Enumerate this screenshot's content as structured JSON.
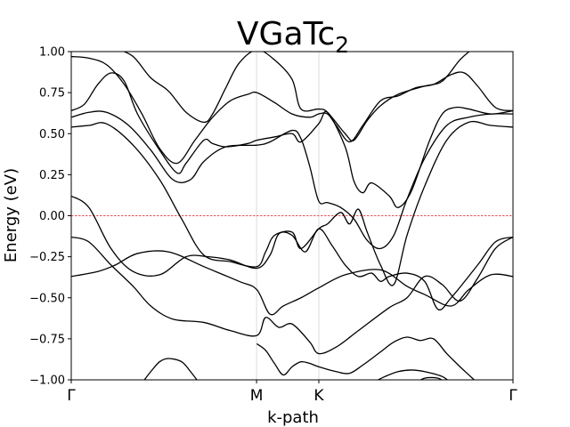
{
  "chart_data": {
    "type": "line",
    "title_main": "VGaTc",
    "title_sub": "2",
    "xlabel": "k-path",
    "ylabel": "Energy (eV)",
    "ylim": [
      -1.0,
      1.0
    ],
    "xlim": [
      0,
      1.0
    ],
    "yticks": [
      -1.0,
      -0.75,
      -0.5,
      -0.25,
      0.0,
      0.25,
      0.5,
      0.75,
      1.0
    ],
    "ytick_labels": [
      "−1.00",
      "−0.75",
      "−0.50",
      "−0.25",
      "0.00",
      "0.25",
      "0.50",
      "0.75",
      "1.00"
    ],
    "kpoints": [
      {
        "label": "Γ",
        "x": 0.0
      },
      {
        "label": "M",
        "x": 0.4195
      },
      {
        "label": "K",
        "x": 0.5605
      },
      {
        "label": "Γ",
        "x": 1.0
      }
    ],
    "fermi_level": 0.0,
    "colors": {
      "bands": "#000000",
      "fermi": "#e41a1c",
      "kline": "#d3d3d3"
    },
    "series": [
      {
        "points": [
          [
            0.0,
            -0.37
          ],
          [
            0.06,
            -0.34
          ],
          [
            0.1,
            -0.3
          ],
          [
            0.15,
            -0.23
          ],
          [
            0.22,
            -0.22
          ],
          [
            0.3,
            -0.31
          ],
          [
            0.38,
            -0.4
          ],
          [
            0.42,
            -0.45
          ],
          [
            0.45,
            -0.6
          ],
          [
            0.48,
            -0.55
          ],
          [
            0.52,
            -0.5
          ],
          [
            0.56,
            -0.44
          ],
          [
            0.62,
            -0.36
          ],
          [
            0.7,
            -0.33
          ],
          [
            0.76,
            -0.43
          ],
          [
            0.8,
            -0.48
          ],
          [
            0.86,
            -0.55
          ],
          [
            0.9,
            -0.45
          ],
          [
            0.95,
            -0.36
          ],
          [
            1.0,
            -0.37
          ]
        ]
      },
      {
        "points": [
          [
            0.0,
            -0.13
          ],
          [
            0.04,
            -0.16
          ],
          [
            0.09,
            -0.3
          ],
          [
            0.14,
            -0.43
          ],
          [
            0.18,
            -0.55
          ],
          [
            0.23,
            -0.63
          ],
          [
            0.3,
            -0.65
          ],
          [
            0.36,
            -0.7
          ],
          [
            0.42,
            -0.73
          ],
          [
            0.44,
            -0.62
          ],
          [
            0.47,
            -0.68
          ],
          [
            0.5,
            -0.66
          ],
          [
            0.54,
            -0.77
          ],
          [
            0.56,
            -0.84
          ],
          [
            0.6,
            -0.8
          ],
          [
            0.65,
            -0.7
          ],
          [
            0.72,
            -0.56
          ],
          [
            0.76,
            -0.5
          ],
          [
            0.8,
            -0.37
          ],
          [
            0.84,
            -0.42
          ],
          [
            0.88,
            -0.52
          ],
          [
            0.92,
            -0.38
          ],
          [
            0.96,
            -0.2
          ],
          [
            1.0,
            -0.13
          ]
        ]
      },
      {
        "points": [
          [
            0.0,
            0.12
          ],
          [
            0.04,
            0.05
          ],
          [
            0.09,
            -0.2
          ],
          [
            0.14,
            -0.34
          ],
          [
            0.2,
            -0.36
          ],
          [
            0.26,
            -0.25
          ],
          [
            0.31,
            -0.25
          ],
          [
            0.36,
            -0.27
          ],
          [
            0.42,
            -0.32
          ],
          [
            0.45,
            -0.24
          ],
          [
            0.47,
            -0.11
          ],
          [
            0.5,
            -0.12
          ],
          [
            0.53,
            -0.22
          ],
          [
            0.56,
            -0.08
          ],
          [
            0.59,
            -0.18
          ],
          [
            0.62,
            -0.3
          ],
          [
            0.65,
            -0.37
          ],
          [
            0.68,
            -0.35
          ],
          [
            0.7,
            -0.4
          ],
          [
            0.72,
            -0.37
          ],
          [
            0.76,
            -0.35
          ],
          [
            0.8,
            -0.4
          ],
          [
            0.83,
            -0.57
          ],
          [
            0.86,
            -0.5
          ],
          [
            0.92,
            -0.3
          ],
          [
            0.96,
            -0.16
          ],
          [
            1.0,
            -0.13
          ]
        ]
      },
      {
        "points": [
          [
            0.0,
            0.54
          ],
          [
            0.04,
            0.55
          ],
          [
            0.08,
            0.56
          ],
          [
            0.14,
            0.43
          ],
          [
            0.2,
            0.22
          ],
          [
            0.25,
            -0.02
          ],
          [
            0.3,
            -0.24
          ],
          [
            0.36,
            -0.28
          ],
          [
            0.42,
            -0.31
          ],
          [
            0.44,
            -0.22
          ],
          [
            0.46,
            -0.12
          ],
          [
            0.5,
            -0.1
          ],
          [
            0.52,
            -0.2
          ],
          [
            0.56,
            -0.08
          ],
          [
            0.58,
            -0.05
          ],
          [
            0.61,
            0.02
          ],
          [
            0.63,
            -0.05
          ],
          [
            0.65,
            0.04
          ],
          [
            0.67,
            -0.1
          ],
          [
            0.7,
            -0.3
          ],
          [
            0.73,
            -0.42
          ],
          [
            0.76,
            -0.12
          ],
          [
            0.8,
            0.18
          ],
          [
            0.85,
            0.46
          ],
          [
            0.9,
            0.57
          ],
          [
            0.95,
            0.55
          ],
          [
            1.0,
            0.54
          ]
        ]
      },
      {
        "points": [
          [
            0.0,
            0.6
          ],
          [
            0.04,
            0.63
          ],
          [
            0.08,
            0.63
          ],
          [
            0.13,
            0.55
          ],
          [
            0.18,
            0.4
          ],
          [
            0.23,
            0.22
          ],
          [
            0.27,
            0.22
          ],
          [
            0.3,
            0.33
          ],
          [
            0.35,
            0.42
          ],
          [
            0.42,
            0.43
          ],
          [
            0.45,
            0.45
          ],
          [
            0.5,
            0.52
          ],
          [
            0.52,
            0.47
          ],
          [
            0.54,
            0.3
          ],
          [
            0.56,
            0.09
          ],
          [
            0.58,
            0.08
          ],
          [
            0.61,
            0.05
          ],
          [
            0.64,
            -0.02
          ],
          [
            0.67,
            -0.15
          ],
          [
            0.7,
            -0.2
          ],
          [
            0.73,
            -0.12
          ],
          [
            0.76,
            0.1
          ],
          [
            0.8,
            0.35
          ],
          [
            0.85,
            0.55
          ],
          [
            0.9,
            0.6
          ],
          [
            0.95,
            0.62
          ],
          [
            1.0,
            0.62
          ]
        ]
      },
      {
        "points": [
          [
            0.0,
            0.64
          ],
          [
            0.03,
            0.68
          ],
          [
            0.06,
            0.8
          ],
          [
            0.09,
            0.87
          ],
          [
            0.12,
            0.82
          ],
          [
            0.15,
            0.62
          ],
          [
            0.2,
            0.4
          ],
          [
            0.24,
            0.26
          ],
          [
            0.26,
            0.32
          ],
          [
            0.3,
            0.46
          ],
          [
            0.32,
            0.44
          ],
          [
            0.35,
            0.42
          ],
          [
            0.4,
            0.44
          ],
          [
            0.42,
            0.46
          ],
          [
            0.46,
            0.48
          ],
          [
            0.5,
            0.5
          ],
          [
            0.52,
            0.45
          ],
          [
            0.56,
            0.56
          ],
          [
            0.58,
            0.63
          ],
          [
            0.62,
            0.42
          ],
          [
            0.64,
            0.21
          ],
          [
            0.66,
            0.14
          ],
          [
            0.68,
            0.2
          ],
          [
            0.72,
            0.12
          ],
          [
            0.74,
            0.05
          ],
          [
            0.77,
            0.15
          ],
          [
            0.81,
            0.45
          ],
          [
            0.84,
            0.62
          ],
          [
            0.87,
            0.66
          ],
          [
            0.9,
            0.65
          ],
          [
            0.95,
            0.62
          ],
          [
            1.0,
            0.64
          ]
        ]
      },
      {
        "points": [
          [
            0.0,
            0.97
          ],
          [
            0.04,
            0.96
          ],
          [
            0.08,
            0.92
          ],
          [
            0.12,
            0.8
          ],
          [
            0.16,
            0.62
          ],
          [
            0.2,
            0.41
          ],
          [
            0.24,
            0.32
          ],
          [
            0.28,
            0.46
          ],
          [
            0.32,
            0.6
          ],
          [
            0.36,
            0.7
          ],
          [
            0.4,
            0.74
          ],
          [
            0.42,
            0.75
          ],
          [
            0.46,
            0.69
          ],
          [
            0.5,
            0.62
          ],
          [
            0.54,
            0.6
          ],
          [
            0.56,
            0.62
          ],
          [
            0.58,
            0.62
          ],
          [
            0.6,
            0.55
          ],
          [
            0.63,
            0.45
          ],
          [
            0.66,
            0.55
          ],
          [
            0.7,
            0.7
          ],
          [
            0.74,
            0.73
          ],
          [
            0.78,
            0.78
          ],
          [
            0.82,
            0.8
          ],
          [
            0.86,
            0.86
          ],
          [
            0.89,
            0.87
          ],
          [
            0.92,
            0.79
          ],
          [
            0.96,
            0.66
          ],
          [
            1.0,
            0.64
          ]
        ]
      },
      {
        "points": [
          [
            0.1,
            1.02
          ],
          [
            0.14,
            0.97
          ],
          [
            0.18,
            0.84
          ],
          [
            0.22,
            0.76
          ],
          [
            0.26,
            0.63
          ],
          [
            0.3,
            0.57
          ],
          [
            0.32,
            0.62
          ],
          [
            0.35,
            0.78
          ],
          [
            0.38,
            0.93
          ],
          [
            0.42,
            1.01
          ],
          [
            0.46,
            0.95
          ],
          [
            0.5,
            0.83
          ],
          [
            0.52,
            0.65
          ],
          [
            0.56,
            0.65
          ],
          [
            0.58,
            0.63
          ],
          [
            0.62,
            0.5
          ],
          [
            0.64,
            0.46
          ],
          [
            0.67,
            0.58
          ],
          [
            0.7,
            0.67
          ],
          [
            0.74,
            0.74
          ],
          [
            0.8,
            0.79
          ],
          [
            0.84,
            0.82
          ],
          [
            0.88,
            0.95
          ],
          [
            0.91,
            1.02
          ]
        ]
      },
      {
        "points": [
          [
            0.16,
            -1.02
          ],
          [
            0.18,
            -0.95
          ],
          [
            0.2,
            -0.89
          ],
          [
            0.22,
            -0.87
          ],
          [
            0.25,
            -0.89
          ],
          [
            0.27,
            -0.95
          ],
          [
            0.29,
            -1.02
          ]
        ]
      },
      {
        "points": [
          [
            0.42,
            -0.78
          ],
          [
            0.44,
            -0.82
          ],
          [
            0.46,
            -0.9
          ],
          [
            0.48,
            -0.97
          ],
          [
            0.5,
            -0.92
          ],
          [
            0.52,
            -0.89
          ],
          [
            0.54,
            -0.9
          ],
          [
            0.56,
            -0.92
          ],
          [
            0.6,
            -0.95
          ],
          [
            0.63,
            -0.96
          ],
          [
            0.66,
            -0.91
          ],
          [
            0.7,
            -0.83
          ],
          [
            0.73,
            -0.77
          ],
          [
            0.76,
            -0.74
          ],
          [
            0.79,
            -0.76
          ],
          [
            0.82,
            -0.75
          ],
          [
            0.85,
            -0.84
          ],
          [
            0.88,
            -0.92
          ],
          [
            0.9,
            -0.97
          ],
          [
            0.92,
            -1.02
          ]
        ]
      },
      {
        "points": [
          [
            0.68,
            -1.02
          ],
          [
            0.71,
            -0.98
          ],
          [
            0.74,
            -0.95
          ],
          [
            0.77,
            -0.94
          ],
          [
            0.8,
            -0.95
          ],
          [
            0.84,
            -0.98
          ],
          [
            0.86,
            -1.02
          ]
        ]
      },
      {
        "points": [
          [
            0.78,
            -1.02
          ],
          [
            0.8,
            -0.99
          ],
          [
            0.83,
            -0.99
          ],
          [
            0.85,
            -1.02
          ]
        ]
      }
    ]
  }
}
